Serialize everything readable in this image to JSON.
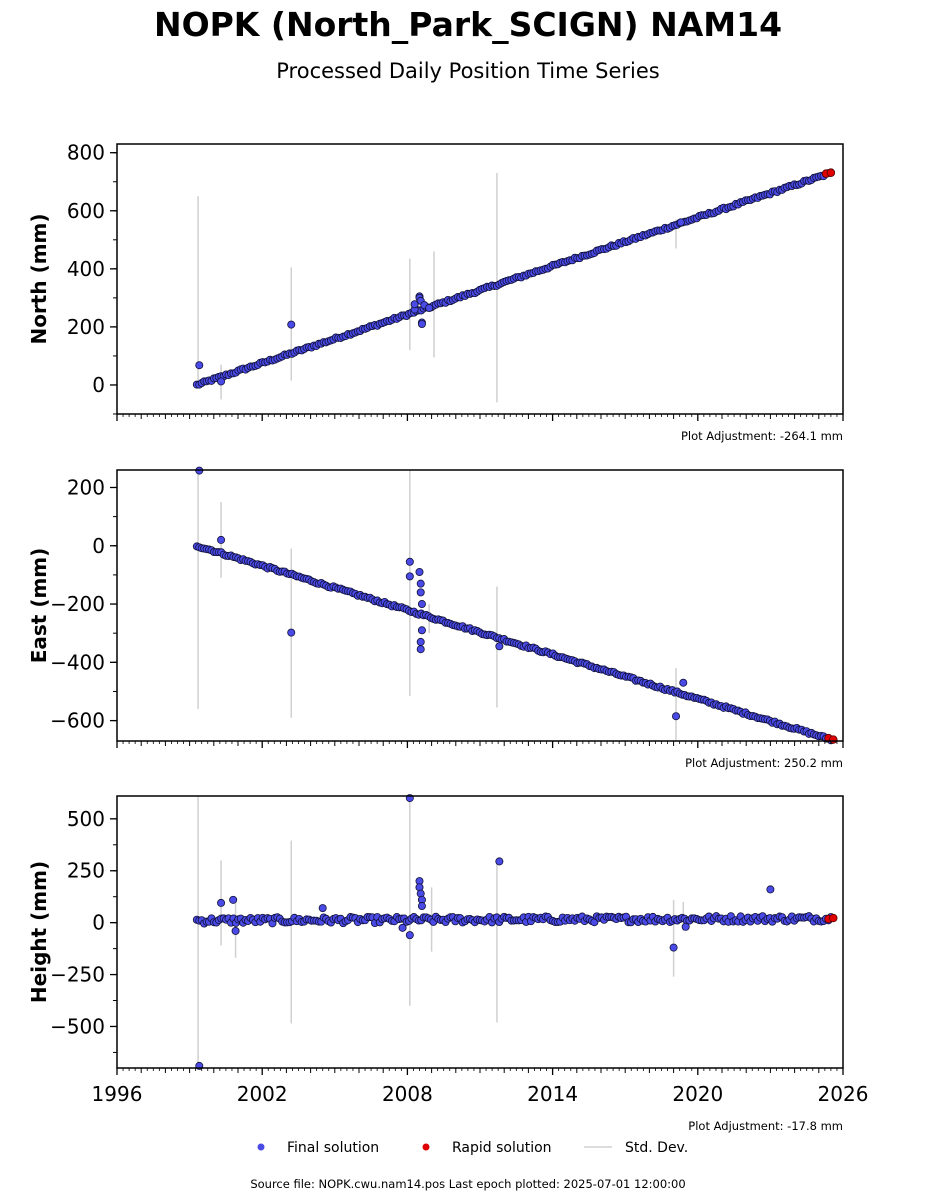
{
  "title": "NOPK (North_Park_SCIGN) NAM14",
  "subtitle": "Processed Daily Position Time Series",
  "source_line": "Source file: NOPK.cwu.nam14.pos  Last epoch plotted: 2025-07-01 12:00:00",
  "legend": {
    "final": "Final solution",
    "rapid": "Rapid solution",
    "std": "Std. Dev."
  },
  "colors": {
    "final": "#4a4ae6",
    "final_edge": "#11113a",
    "rapid": "#e00000",
    "std": "#d0d0d0"
  },
  "chart_data": [
    {
      "type": "scatter",
      "ylabel": "North (mm)",
      "adjustment": "Plot Adjustment: -264.1 mm",
      "xlim": [
        1996,
        2026
      ],
      "ylim": [
        -100,
        830
      ],
      "yticks": [
        0,
        200,
        400,
        600,
        800
      ],
      "ytick_labels": [
        "0",
        "200",
        "400",
        "600",
        "800"
      ],
      "trend": {
        "start": [
          1999.3,
          0
        ],
        "end": [
          2025.5,
          730
        ]
      },
      "outliers": [
        [
          1999.4,
          68
        ],
        [
          2000.3,
          12
        ],
        [
          2003.2,
          208
        ],
        [
          2008.3,
          260
        ],
        [
          2008.3,
          278
        ],
        [
          2008.5,
          305
        ],
        [
          2008.5,
          300
        ],
        [
          2008.55,
          290
        ],
        [
          2008.6,
          215
        ],
        [
          2008.6,
          210
        ],
        [
          2008.7,
          275
        ],
        [
          2008.9,
          265
        ],
        [
          2019.3,
          560
        ]
      ],
      "std_bars": [
        [
          1999.35,
          0,
          650
        ],
        [
          2000.3,
          -50,
          70
        ],
        [
          2003.2,
          15,
          405
        ],
        [
          2008.1,
          120,
          435
        ],
        [
          2009.1,
          95,
          460
        ],
        [
          2011.7,
          -60,
          730
        ],
        [
          2019.1,
          470,
          570
        ]
      ],
      "rapid": [
        [
          2025.3,
          728
        ],
        [
          2025.5,
          731
        ]
      ]
    },
    {
      "type": "scatter",
      "ylabel": "East (mm)",
      "adjustment": "Plot Adjustment: 250.2 mm",
      "xlim": [
        1996,
        2026
      ],
      "ylim": [
        -670,
        260
      ],
      "yticks": [
        -600,
        -400,
        -200,
        0,
        200
      ],
      "ytick_labels": [
        "−600",
        "−400",
        "−200",
        "0",
        "200"
      ],
      "trend": {
        "start": [
          1999.3,
          0
        ],
        "end": [
          2025.5,
          -665
        ]
      },
      "outliers": [
        [
          1999.4,
          258
        ],
        [
          2000.3,
          20
        ],
        [
          2003.2,
          -298
        ],
        [
          2008.1,
          -55
        ],
        [
          2008.1,
          -105
        ],
        [
          2008.5,
          -90
        ],
        [
          2008.55,
          -130
        ],
        [
          2008.55,
          -160
        ],
        [
          2008.6,
          -200
        ],
        [
          2008.6,
          -290
        ],
        [
          2008.55,
          -330
        ],
        [
          2008.55,
          -355
        ],
        [
          2011.8,
          -345
        ],
        [
          2019.1,
          -585
        ],
        [
          2019.4,
          -470
        ]
      ],
      "std_bars": [
        [
          1999.35,
          -560,
          260
        ],
        [
          2000.3,
          -110,
          150
        ],
        [
          2003.2,
          -590,
          -10
        ],
        [
          2008.1,
          -515,
          260
        ],
        [
          2008.9,
          -300,
          -200
        ],
        [
          2011.7,
          -555,
          -140
        ],
        [
          2019.1,
          -680,
          -420
        ]
      ],
      "rapid": [
        [
          2025.4,
          -660
        ],
        [
          2025.6,
          -665
        ]
      ]
    },
    {
      "type": "scatter",
      "ylabel": "Height (mm)",
      "adjustment": "Plot Adjustment: -17.8 mm",
      "xlabel_ticks": [
        "1996",
        "2002",
        "2008",
        "2014",
        "2020",
        "2026"
      ],
      "xticks": [
        1996,
        2002,
        2008,
        2014,
        2020,
        2026
      ],
      "xlim": [
        1996,
        2026
      ],
      "ylim": [
        -700,
        610
      ],
      "yticks": [
        -500,
        -250,
        0,
        250,
        500
      ],
      "ytick_labels": [
        "−500",
        "−250",
        "0",
        "250",
        "500"
      ],
      "trend": {
        "start": [
          1999.3,
          10
        ],
        "end": [
          2025.5,
          20
        ]
      },
      "outliers": [
        [
          1999.4,
          -690
        ],
        [
          2000.3,
          95
        ],
        [
          2000.8,
          110
        ],
        [
          2000.9,
          -40
        ],
        [
          2004.5,
          70
        ],
        [
          2007.8,
          -25
        ],
        [
          2008.1,
          -60
        ],
        [
          2008.1,
          600
        ],
        [
          2008.5,
          200
        ],
        [
          2008.5,
          170
        ],
        [
          2008.55,
          140
        ],
        [
          2008.6,
          110
        ],
        [
          2008.6,
          80
        ],
        [
          2011.8,
          295
        ],
        [
          2019.0,
          -120
        ],
        [
          2019.5,
          -20
        ],
        [
          2023.0,
          160
        ]
      ],
      "std_bars": [
        [
          1999.35,
          -690,
          610
        ],
        [
          2000.3,
          -110,
          300
        ],
        [
          2000.9,
          -170,
          110
        ],
        [
          2003.2,
          -485,
          395
        ],
        [
          2008.1,
          -400,
          610
        ],
        [
          2009.0,
          -140,
          170
        ],
        [
          2011.7,
          -480,
          300
        ],
        [
          2019.0,
          -260,
          110
        ],
        [
          2019.4,
          -40,
          100
        ]
      ],
      "rapid": [
        [
          2025.4,
          18
        ],
        [
          2025.6,
          22
        ]
      ]
    }
  ]
}
